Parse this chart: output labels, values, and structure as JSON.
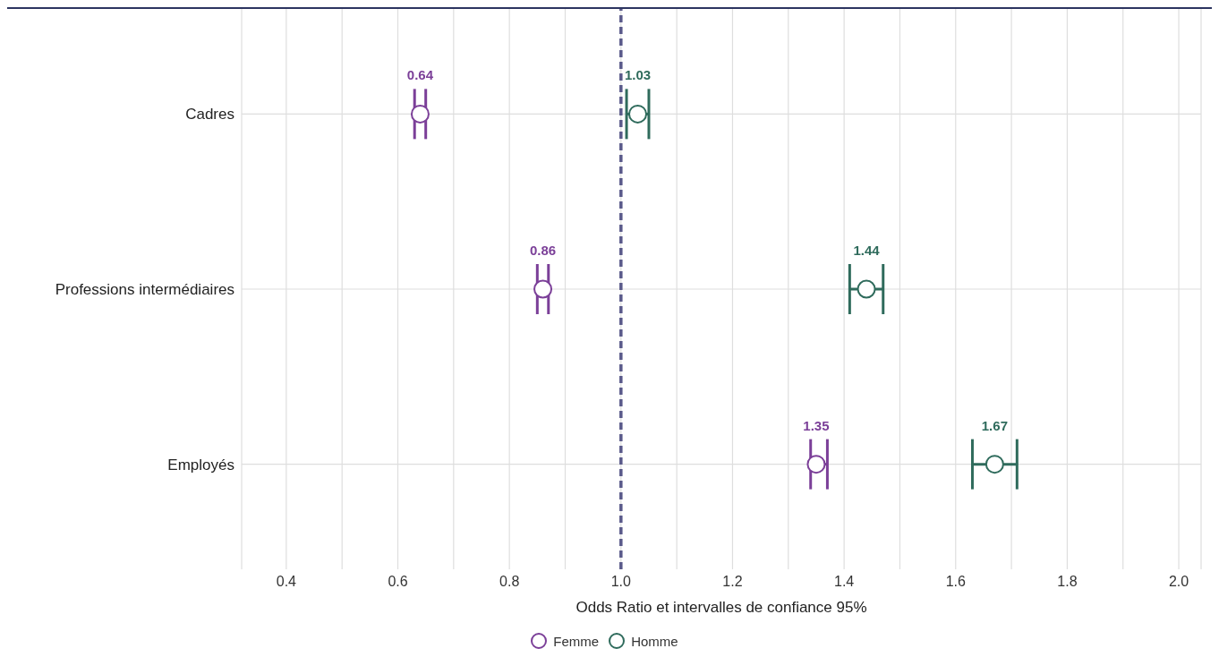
{
  "chart_data": {
    "type": "scatter",
    "xlabel": "Odds Ratio et intervalles de confiance 95%",
    "categories": [
      "Cadres",
      "Professions intermédiaires",
      "Employés"
    ],
    "series": [
      {
        "name": "Femme",
        "color": "#7b3f98",
        "values": [
          0.64,
          0.86,
          1.35
        ],
        "errors": [
          [
            0.63,
            0.65
          ],
          [
            0.85,
            0.87
          ],
          [
            1.34,
            1.37
          ]
        ]
      },
      {
        "name": "Homme",
        "color": "#2f6b5c",
        "values": [
          1.03,
          1.44,
          1.67
        ],
        "errors": [
          [
            1.01,
            1.05
          ],
          [
            1.41,
            1.47
          ],
          [
            1.63,
            1.71
          ]
        ]
      }
    ],
    "orientation": "horizontal",
    "xlim": [
      0.32,
      2.04
    ],
    "xticks": [
      0.4,
      {
        "value": 0.5,
        "label": null
      },
      0.6,
      {
        "value": 0.7,
        "label": null
      },
      0.8,
      {
        "value": 0.9,
        "label": null
      },
      {
        "value": 1.0,
        "label": "1.0"
      },
      {
        "value": 1.1,
        "label": null
      },
      1.2,
      {
        "value": 1.3,
        "label": null
      },
      1.4,
      {
        "value": 1.5,
        "label": null
      },
      1.6,
      {
        "value": 1.7,
        "label": null
      },
      1.8,
      {
        "value": 1.9,
        "label": null
      },
      {
        "value": 2.0,
        "label": "2.0"
      }
    ],
    "ref_lines": [
      {
        "axis": "x",
        "value": 1,
        "color": "#5a5a8a",
        "line_style": "dashed"
      }
    ],
    "data_labels": true,
    "grid": true,
    "legend": "bottom",
    "marker": "circle"
  }
}
